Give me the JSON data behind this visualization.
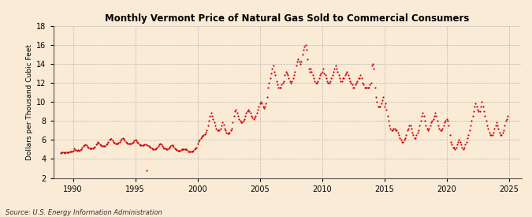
{
  "title": "Monthly Vermont Price of Natural Gas Sold to Commercial Consumers",
  "ylabel": "Dollars per Thousand Cubic Feet",
  "source": "Source: U.S. Energy Information Administration",
  "background_color": "#faebd7",
  "line_color": "#cc0000",
  "ylim": [
    2,
    18
  ],
  "yticks": [
    2,
    4,
    6,
    8,
    10,
    12,
    14,
    16,
    18
  ],
  "xtick_years": [
    1990,
    1995,
    2000,
    2005,
    2010,
    2015,
    2020,
    2025
  ],
  "data": {
    "1989-01": 4.65,
    "1989-02": 4.72,
    "1989-03": 4.68,
    "1989-04": 4.7,
    "1989-05": 4.65,
    "1989-06": 4.68,
    "1989-07": 4.66,
    "1989-08": 4.68,
    "1989-09": 4.7,
    "1989-10": 4.75,
    "1989-11": 4.8,
    "1989-12": 4.82,
    "1990-01": 4.9,
    "1990-02": 5.1,
    "1990-03": 4.98,
    "1990-04": 4.95,
    "1990-05": 4.9,
    "1990-06": 4.92,
    "1990-07": 4.9,
    "1990-08": 4.92,
    "1990-09": 5.05,
    "1990-10": 5.2,
    "1990-11": 5.35,
    "1990-12": 5.45,
    "1991-01": 5.55,
    "1991-02": 5.42,
    "1991-03": 5.25,
    "1991-04": 5.18,
    "1991-05": 5.1,
    "1991-06": 5.08,
    "1991-07": 5.1,
    "1991-08": 5.12,
    "1991-09": 5.2,
    "1991-10": 5.32,
    "1991-11": 5.5,
    "1991-12": 5.62,
    "1992-01": 5.8,
    "1992-02": 5.72,
    "1992-03": 5.55,
    "1992-04": 5.48,
    "1992-05": 5.4,
    "1992-06": 5.38,
    "1992-07": 5.4,
    "1992-08": 5.4,
    "1992-09": 5.5,
    "1992-10": 5.62,
    "1992-11": 5.8,
    "1992-12": 6.0,
    "1993-01": 6.12,
    "1993-02": 6.1,
    "1993-03": 5.92,
    "1993-04": 5.8,
    "1993-05": 5.7,
    "1993-06": 5.65,
    "1993-07": 5.62,
    "1993-08": 5.62,
    "1993-09": 5.7,
    "1993-10": 5.8,
    "1993-11": 5.92,
    "1993-12": 6.08,
    "1994-01": 6.2,
    "1994-02": 6.12,
    "1994-03": 5.95,
    "1994-04": 5.82,
    "1994-05": 5.72,
    "1994-06": 5.65,
    "1994-07": 5.62,
    "1994-08": 5.62,
    "1994-09": 5.65,
    "1994-10": 5.72,
    "1994-11": 5.82,
    "1994-12": 5.95,
    "1995-01": 6.02,
    "1995-02": 5.92,
    "1995-03": 5.8,
    "1995-04": 5.7,
    "1995-05": 5.55,
    "1995-06": 5.45,
    "1995-07": 5.42,
    "1995-08": 5.42,
    "1995-09": 5.42,
    "1995-10": 5.5,
    "1995-11": 5.52,
    "1995-12": 2.8,
    "1996-01": 5.42,
    "1996-02": 5.4,
    "1996-03": 5.32,
    "1996-04": 5.22,
    "1996-05": 5.12,
    "1996-06": 5.02,
    "1996-07": 5.0,
    "1996-08": 5.0,
    "1996-09": 5.1,
    "1996-10": 5.22,
    "1996-11": 5.35,
    "1996-12": 5.52,
    "1997-01": 5.62,
    "1997-02": 5.52,
    "1997-03": 5.35,
    "1997-04": 5.22,
    "1997-05": 5.12,
    "1997-06": 5.08,
    "1997-07": 5.02,
    "1997-08": 5.02,
    "1997-09": 5.1,
    "1997-10": 5.22,
    "1997-11": 5.35,
    "1997-12": 5.45,
    "1998-01": 5.42,
    "1998-02": 5.32,
    "1998-03": 5.12,
    "1998-04": 5.02,
    "1998-05": 4.92,
    "1998-06": 4.88,
    "1998-07": 4.88,
    "1998-08": 4.88,
    "1998-09": 4.92,
    "1998-10": 5.0,
    "1998-11": 5.02,
    "1998-12": 5.02,
    "1999-01": 5.02,
    "1999-02": 5.0,
    "1999-03": 4.92,
    "1999-04": 4.82,
    "1999-05": 4.8,
    "1999-06": 4.8,
    "1999-07": 4.8,
    "1999-08": 4.8,
    "1999-09": 4.88,
    "1999-10": 5.0,
    "1999-11": 5.1,
    "1999-12": 5.22,
    "2000-01": 5.6,
    "2000-02": 5.85,
    "2000-03": 6.02,
    "2000-04": 6.22,
    "2000-05": 6.35,
    "2000-06": 6.45,
    "2000-07": 6.52,
    "2000-08": 6.62,
    "2000-09": 6.82,
    "2000-10": 7.05,
    "2000-11": 7.55,
    "2000-12": 8.05,
    "2001-01": 8.55,
    "2001-02": 8.82,
    "2001-03": 8.52,
    "2001-04": 8.22,
    "2001-05": 7.82,
    "2001-06": 7.52,
    "2001-07": 7.22,
    "2001-08": 7.02,
    "2001-09": 7.02,
    "2001-10": 7.02,
    "2001-11": 7.22,
    "2001-12": 7.52,
    "2002-01": 7.82,
    "2002-02": 7.62,
    "2002-03": 7.22,
    "2002-04": 7.02,
    "2002-05": 6.82,
    "2002-06": 6.72,
    "2002-07": 6.72,
    "2002-08": 6.82,
    "2002-09": 7.02,
    "2002-10": 7.22,
    "2002-11": 7.82,
    "2002-12": 8.52,
    "2003-01": 9.05,
    "2003-02": 9.22,
    "2003-03": 8.82,
    "2003-04": 8.52,
    "2003-05": 8.22,
    "2003-06": 8.02,
    "2003-07": 7.82,
    "2003-08": 7.82,
    "2003-09": 8.02,
    "2003-10": 8.22,
    "2003-11": 8.52,
    "2003-12": 8.82,
    "2004-01": 9.05,
    "2004-02": 9.22,
    "2004-03": 9.02,
    "2004-04": 8.82,
    "2004-05": 8.52,
    "2004-06": 8.32,
    "2004-07": 8.22,
    "2004-08": 8.32,
    "2004-09": 8.52,
    "2004-10": 8.82,
    "2004-11": 9.22,
    "2004-12": 9.52,
    "2005-01": 9.82,
    "2005-02": 10.02,
    "2005-03": 9.82,
    "2005-04": 9.52,
    "2005-05": 9.32,
    "2005-06": 9.52,
    "2005-07": 9.82,
    "2005-08": 10.52,
    "2005-09": 11.52,
    "2005-10": 12.02,
    "2005-11": 12.52,
    "2005-12": 13.05,
    "2006-01": 13.52,
    "2006-02": 13.82,
    "2006-03": 13.22,
    "2006-04": 12.82,
    "2006-05": 12.22,
    "2006-06": 11.82,
    "2006-07": 11.52,
    "2006-08": 11.52,
    "2006-09": 11.52,
    "2006-10": 11.82,
    "2006-11": 12.02,
    "2006-12": 12.22,
    "2007-01": 12.82,
    "2007-02": 13.22,
    "2007-03": 13.02,
    "2007-04": 12.82,
    "2007-05": 12.52,
    "2007-06": 12.22,
    "2007-07": 12.02,
    "2007-08": 12.22,
    "2007-09": 12.52,
    "2007-10": 12.82,
    "2007-11": 13.22,
    "2007-12": 13.82,
    "2008-01": 14.22,
    "2008-02": 14.52,
    "2008-03": 14.22,
    "2008-04": 14.02,
    "2008-05": 14.22,
    "2008-06": 15.02,
    "2008-07": 15.52,
    "2008-08": 15.82,
    "2008-09": 16.02,
    "2008-10": 15.52,
    "2008-11": 14.52,
    "2008-12": 13.52,
    "2009-01": 13.22,
    "2009-02": 13.52,
    "2009-03": 13.22,
    "2009-04": 12.82,
    "2009-05": 12.52,
    "2009-06": 12.22,
    "2009-07": 12.02,
    "2009-08": 12.02,
    "2009-09": 12.22,
    "2009-10": 12.52,
    "2009-11": 12.82,
    "2009-12": 13.02,
    "2010-01": 13.22,
    "2010-02": 13.52,
    "2010-03": 13.02,
    "2010-04": 12.82,
    "2010-05": 12.52,
    "2010-06": 12.22,
    "2010-07": 12.02,
    "2010-08": 12.02,
    "2010-09": 12.22,
    "2010-10": 12.52,
    "2010-11": 12.82,
    "2010-12": 13.22,
    "2011-01": 13.52,
    "2011-02": 13.82,
    "2011-03": 13.52,
    "2011-04": 13.22,
    "2011-05": 12.82,
    "2011-06": 12.52,
    "2011-07": 12.22,
    "2011-08": 12.22,
    "2011-09": 12.52,
    "2011-10": 12.52,
    "2011-11": 12.82,
    "2011-12": 13.02,
    "2012-01": 13.22,
    "2012-02": 12.82,
    "2012-03": 12.52,
    "2012-04": 12.22,
    "2012-05": 12.02,
    "2012-06": 11.82,
    "2012-07": 11.52,
    "2012-08": 11.52,
    "2012-09": 11.82,
    "2012-10": 12.02,
    "2012-11": 12.22,
    "2012-12": 12.52,
    "2013-01": 12.52,
    "2013-02": 12.82,
    "2013-03": 12.52,
    "2013-04": 12.02,
    "2013-05": 11.82,
    "2013-06": 11.52,
    "2013-07": 11.52,
    "2013-08": 11.52,
    "2013-09": 11.52,
    "2013-10": 11.52,
    "2013-11": 11.82,
    "2013-12": 12.02,
    "2014-01": 13.82,
    "2014-02": 14.02,
    "2014-03": 13.52,
    "2014-04": 11.52,
    "2014-05": 10.52,
    "2014-06": 10.02,
    "2014-07": 9.52,
    "2014-08": 9.52,
    "2014-09": 9.52,
    "2014-10": 9.82,
    "2014-11": 10.22,
    "2014-12": 10.52,
    "2015-01": 9.52,
    "2015-02": 9.82,
    "2015-03": 9.22,
    "2015-04": 8.52,
    "2015-05": 8.02,
    "2015-06": 7.52,
    "2015-07": 7.22,
    "2015-08": 7.02,
    "2015-09": 7.02,
    "2015-10": 7.22,
    "2015-11": 7.22,
    "2015-12": 7.02,
    "2016-01": 7.02,
    "2016-02": 6.82,
    "2016-03": 6.52,
    "2016-04": 6.22,
    "2016-05": 6.02,
    "2016-06": 5.82,
    "2016-07": 5.82,
    "2016-08": 6.02,
    "2016-09": 6.22,
    "2016-10": 6.52,
    "2016-11": 7.02,
    "2016-12": 7.22,
    "2017-01": 7.52,
    "2017-02": 7.52,
    "2017-03": 7.22,
    "2017-04": 6.82,
    "2017-05": 6.52,
    "2017-06": 6.22,
    "2017-07": 6.22,
    "2017-08": 6.52,
    "2017-09": 6.82,
    "2017-10": 7.02,
    "2017-11": 7.52,
    "2017-12": 8.02,
    "2018-01": 8.52,
    "2018-02": 8.82,
    "2018-03": 8.52,
    "2018-04": 8.02,
    "2018-05": 7.52,
    "2018-06": 7.22,
    "2018-07": 7.02,
    "2018-08": 7.22,
    "2018-09": 7.52,
    "2018-10": 7.82,
    "2018-11": 8.02,
    "2018-12": 8.22,
    "2019-01": 8.52,
    "2019-02": 8.82,
    "2019-03": 8.52,
    "2019-04": 8.02,
    "2019-05": 7.52,
    "2019-06": 7.22,
    "2019-07": 7.02,
    "2019-08": 7.02,
    "2019-09": 7.22,
    "2019-10": 7.52,
    "2019-11": 7.82,
    "2019-12": 8.02,
    "2020-01": 8.22,
    "2020-02": 8.02,
    "2020-03": 7.52,
    "2020-04": 6.52,
    "2020-05": 5.82,
    "2020-06": 5.52,
    "2020-07": 5.22,
    "2020-08": 5.22,
    "2020-09": 5.02,
    "2020-10": 5.22,
    "2020-11": 5.52,
    "2020-12": 5.82,
    "2021-01": 6.02,
    "2021-02": 5.82,
    "2021-03": 5.52,
    "2021-04": 5.22,
    "2021-05": 5.02,
    "2021-06": 5.22,
    "2021-07": 5.52,
    "2021-08": 5.82,
    "2021-09": 6.22,
    "2021-10": 6.52,
    "2021-11": 7.02,
    "2021-12": 7.52,
    "2022-01": 8.02,
    "2022-02": 8.52,
    "2022-03": 9.02,
    "2022-04": 9.52,
    "2022-05": 9.82,
    "2022-06": 9.52,
    "2022-07": 9.22,
    "2022-08": 9.02,
    "2022-09": 9.02,
    "2022-10": 9.52,
    "2022-11": 10.02,
    "2022-12": 9.52,
    "2023-01": 9.02,
    "2023-02": 8.52,
    "2023-03": 8.02,
    "2023-04": 7.52,
    "2023-05": 7.22,
    "2023-06": 6.82,
    "2023-07": 6.52,
    "2023-08": 6.52,
    "2023-09": 6.52,
    "2023-10": 6.82,
    "2023-11": 7.22,
    "2023-12": 7.52,
    "2024-01": 7.82,
    "2024-02": 7.52,
    "2024-03": 7.22,
    "2024-04": 6.82,
    "2024-05": 6.52,
    "2024-06": 6.52,
    "2024-07": 6.82,
    "2024-08": 7.02,
    "2024-09": 7.52,
    "2024-10": 8.02,
    "2024-11": 8.22,
    "2024-12": 8.52
  }
}
